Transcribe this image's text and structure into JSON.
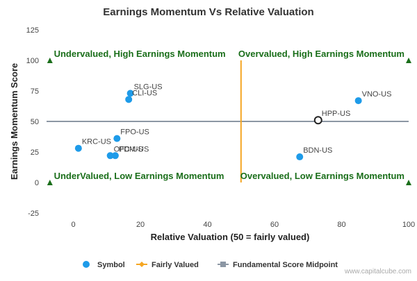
{
  "chart_data": {
    "type": "scatter",
    "title": "Earnings Momentum Vs Relative Valuation",
    "xlabel": "Relative Valuation (50 = fairly valued)",
    "ylabel": "Earnings Momentum Score",
    "xlim": [
      -8,
      100
    ],
    "ylim": [
      -25,
      125
    ],
    "x_ticks": [
      0,
      20,
      40,
      60,
      80,
      100
    ],
    "y_ticks": [
      -25,
      0,
      25,
      50,
      75,
      100,
      125
    ],
    "grid": false,
    "legend_position": "bottom",
    "series": [
      {
        "name": "Symbol",
        "color": "#1e9be9",
        "points": [
          {
            "label": "VNO-US",
            "x": 85,
            "y": 67
          },
          {
            "label": "HPP-US",
            "x": 73,
            "y": 51,
            "highlight": true
          },
          {
            "label": "SLG-US",
            "x": 17,
            "y": 73
          },
          {
            "label": "CLI-US",
            "x": 16.5,
            "y": 68
          },
          {
            "label": "FPO-US",
            "x": 13,
            "y": 36
          },
          {
            "label": "KRC-US",
            "x": 1.5,
            "y": 28
          },
          {
            "label": "OFC-US",
            "x": 11,
            "y": 22
          },
          {
            "label": "PDM-US",
            "x": 12.5,
            "y": 22
          },
          {
            "label": "BDN-US",
            "x": 67.5,
            "y": 21
          }
        ]
      },
      {
        "name": "Fairly Valued",
        "color": "#f5a623",
        "x": 50,
        "y_range": [
          0,
          100
        ]
      },
      {
        "name": "Fundamental Score Midpoint",
        "color": "#8c97a4",
        "y": 50,
        "x_range": [
          -8,
          100
        ]
      }
    ],
    "quadrant_labels": [
      {
        "text": "Undervalued, High Earnings Momentum",
        "x": 0,
        "y": 100
      },
      {
        "text": "Overvalued, High Earnings Momentum",
        "x": 100,
        "y": 100
      },
      {
        "text": "UnderValued, Low Earnings Momentum",
        "x": 0,
        "y": 0
      },
      {
        "text": "Overvalued, Low Earnings Momentum",
        "x": 100,
        "y": 0
      }
    ],
    "quadrant_label_color": "#1a6e1a",
    "corner_markers": [
      {
        "x": -7,
        "y": 100
      },
      {
        "x": 100,
        "y": 100
      },
      {
        "x": -7,
        "y": 0
      },
      {
        "x": 100,
        "y": 0
      }
    ]
  },
  "watermark": "www.capitalcube.com"
}
